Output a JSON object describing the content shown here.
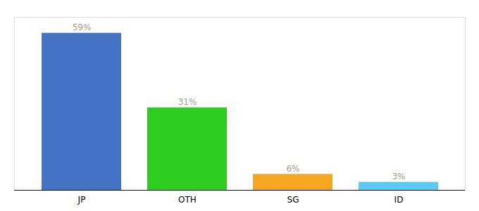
{
  "chart_data": {
    "type": "bar",
    "categories": [
      "JP",
      "OTH",
      "SG",
      "ID"
    ],
    "values": [
      59,
      31,
      6,
      3
    ],
    "value_labels": [
      "59%",
      "31%",
      "6%",
      "3%"
    ],
    "colors": [
      "#4472c4",
      "#2ecc1f",
      "#f5a623",
      "#5bc8f5"
    ],
    "ylim": [
      0,
      65
    ],
    "data_labels": true,
    "tick_labels": "x",
    "grid": false
  }
}
